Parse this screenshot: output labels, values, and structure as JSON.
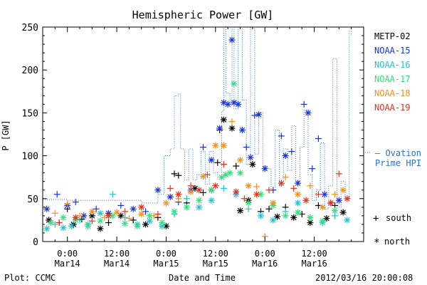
{
  "chart_data": {
    "type": "scatter",
    "title": "Hemispheric Power [GW]",
    "ylabel": "P [GW]",
    "xlabel": "Date and Time",
    "ylim": [
      0,
      250
    ],
    "yticks": [
      "0",
      "50",
      "100",
      "150",
      "200",
      "250"
    ],
    "xlim_hours": [
      -6,
      72
    ],
    "xticks": [
      {
        "time": "0:00",
        "date": "Mar14",
        "hour": 0
      },
      {
        "time": "12:00",
        "date": "Mar14",
        "hour": 12
      },
      {
        "time": "0:00",
        "date": "Mar15",
        "hour": 24
      },
      {
        "time": "12:00",
        "date": "Mar15",
        "hour": 36
      },
      {
        "time": "0:00",
        "date": "Mar16",
        "hour": 48
      },
      {
        "time": "12:00",
        "date": "Mar16",
        "hour": 60
      }
    ],
    "legend": [
      {
        "name": "METP-02",
        "color": "#000000"
      },
      {
        "name": "NOAA-15",
        "color": "#1a33d6"
      },
      {
        "name": "NOAA-16",
        "color": "#22c3cf"
      },
      {
        "name": "NOAA-17",
        "color": "#33e07a"
      },
      {
        "name": "NOAA-18",
        "color": "#f0901e"
      },
      {
        "name": "NOAA-19",
        "color": "#e0321e"
      }
    ],
    "ovation_label_line1": "— Ovation",
    "ovation_label_line2": "Prime HPI",
    "ovation_color": "#2a6fce",
    "marker_legend": [
      {
        "symbol": "+",
        "label": "south"
      },
      {
        "symbol": "*",
        "label": "north"
      }
    ],
    "ovation_hpi": [
      [
        -6,
        49
      ],
      [
        -0.5,
        49
      ],
      [
        0,
        48
      ],
      [
        6,
        48
      ],
      [
        12,
        48
      ],
      [
        18,
        45
      ],
      [
        22,
        55
      ],
      [
        23.5,
        100
      ],
      [
        25,
        108
      ],
      [
        26,
        170
      ],
      [
        27,
        172
      ],
      [
        27.5,
        108
      ],
      [
        28.5,
        72
      ],
      [
        29.5,
        108
      ],
      [
        30.5,
        72
      ],
      [
        31.5,
        78
      ],
      [
        32.5,
        105
      ],
      [
        33.5,
        67
      ],
      [
        34.5,
        105
      ],
      [
        35.5,
        80
      ],
      [
        36.5,
        73
      ],
      [
        37.5,
        152
      ],
      [
        38,
        250
      ],
      [
        38.5,
        173
      ],
      [
        39.5,
        160
      ],
      [
        40,
        250
      ],
      [
        40.5,
        155
      ],
      [
        41.5,
        250
      ],
      [
        42.5,
        165
      ],
      [
        43.5,
        90
      ],
      [
        44.5,
        250
      ],
      [
        45.5,
        102
      ],
      [
        46.5,
        150
      ],
      [
        47.5,
        88
      ],
      [
        48.5,
        85
      ],
      [
        49.5,
        60
      ],
      [
        50.5,
        130
      ],
      [
        51.5,
        65
      ],
      [
        52.5,
        108
      ],
      [
        53.5,
        83
      ],
      [
        54.5,
        135
      ],
      [
        55.5,
        70
      ],
      [
        56.5,
        110
      ],
      [
        57.5,
        153
      ],
      [
        58.5,
        78
      ],
      [
        59.5,
        48
      ],
      [
        60.5,
        60
      ],
      [
        61.5,
        115
      ],
      [
        62.5,
        38
      ],
      [
        63.5,
        65
      ],
      [
        64.5,
        213
      ],
      [
        65.5,
        40
      ],
      [
        66.5,
        70
      ],
      [
        67.5,
        50
      ],
      [
        68.5,
        245
      ],
      [
        69,
        240
      ]
    ],
    "series": [
      {
        "name": "METP-02",
        "points": [
          [
            -4.5,
            25,
            "n"
          ],
          [
            -2,
            22,
            "s"
          ],
          [
            0,
            38,
            "s"
          ],
          [
            1.5,
            20,
            "n"
          ],
          [
            3.5,
            26,
            "s"
          ],
          [
            6,
            30,
            "n"
          ],
          [
            8,
            15,
            "n"
          ],
          [
            10,
            22,
            "s"
          ],
          [
            13,
            30,
            "n"
          ],
          [
            16,
            25,
            "s"
          ],
          [
            19,
            20,
            "n"
          ],
          [
            22,
            28,
            "s"
          ],
          [
            24,
            18,
            "n"
          ],
          [
            26,
            79,
            "s"
          ],
          [
            27,
            77,
            "s"
          ],
          [
            29,
            45,
            "s"
          ],
          [
            31,
            62,
            "n"
          ],
          [
            33,
            57,
            "s"
          ],
          [
            35,
            60,
            "n"
          ],
          [
            36.5,
            92,
            "s"
          ],
          [
            37,
            130,
            "s"
          ],
          [
            38,
            142,
            "n"
          ],
          [
            40,
            132,
            "n"
          ],
          [
            41,
            88,
            "s"
          ],
          [
            42,
            36,
            "n"
          ],
          [
            44,
            48,
            "n"
          ],
          [
            45,
            90,
            "n"
          ],
          [
            47,
            35,
            "s"
          ],
          [
            49,
            38,
            "s"
          ],
          [
            51,
            29,
            "n"
          ],
          [
            53,
            40,
            "s"
          ],
          [
            55,
            28,
            "n"
          ],
          [
            57,
            32,
            "s"
          ],
          [
            59,
            22,
            "n"
          ],
          [
            61,
            42,
            "s"
          ],
          [
            63,
            27,
            "n"
          ],
          [
            65,
            42,
            "s"
          ],
          [
            67,
            34,
            "n"
          ]
        ]
      },
      {
        "name": "NOAA-15",
        "points": [
          [
            -5,
            38,
            "n"
          ],
          [
            -2.5,
            55,
            "s"
          ],
          [
            0,
            42,
            "n"
          ],
          [
            2,
            46,
            "s"
          ],
          [
            4,
            30,
            "n"
          ],
          [
            7,
            38,
            "s"
          ],
          [
            10,
            33,
            "n"
          ],
          [
            13,
            42,
            "s"
          ],
          [
            16,
            38,
            "n"
          ],
          [
            19,
            35,
            "s"
          ],
          [
            22,
            60,
            "n"
          ],
          [
            25,
            52,
            "n"
          ],
          [
            27,
            46,
            "s"
          ],
          [
            30,
            60,
            "n"
          ],
          [
            33,
            110,
            "s"
          ],
          [
            35,
            95,
            "n"
          ],
          [
            37,
            132,
            "n"
          ],
          [
            38,
            162,
            "n"
          ],
          [
            39,
            160,
            "n"
          ],
          [
            40,
            235,
            "n"
          ],
          [
            40.5,
            162,
            "n"
          ],
          [
            41.5,
            160,
            "n"
          ],
          [
            42.5,
            130,
            "n"
          ],
          [
            43.5,
            110,
            "s"
          ],
          [
            44.5,
            98,
            "n"
          ],
          [
            45.5,
            147,
            "s"
          ],
          [
            46.5,
            148,
            "n"
          ],
          [
            48,
            85,
            "n"
          ],
          [
            50,
            60,
            "s"
          ],
          [
            52,
            123,
            "s"
          ],
          [
            53,
            100,
            "n"
          ],
          [
            54.5,
            105,
            "s"
          ],
          [
            56,
            68,
            "n"
          ],
          [
            57.5,
            160,
            "s"
          ],
          [
            58.5,
            150,
            "n"
          ],
          [
            59.5,
            85,
            "s"
          ],
          [
            61,
            120,
            "s"
          ],
          [
            62.5,
            55,
            "n"
          ],
          [
            64,
            45,
            "s"
          ],
          [
            66,
            48,
            "n"
          ]
        ]
      },
      {
        "name": "NOAA-16",
        "points": [
          [
            -5,
            15,
            "n"
          ],
          [
            -3,
            20,
            "s"
          ],
          [
            -1,
            16,
            "n"
          ],
          [
            1,
            18,
            "n"
          ],
          [
            3,
            25,
            "s"
          ],
          [
            5,
            20,
            "n"
          ],
          [
            8,
            33,
            "n"
          ],
          [
            11,
            55,
            "s"
          ],
          [
            14,
            28,
            "s"
          ],
          [
            17,
            20,
            "n"
          ],
          [
            20,
            24,
            "n"
          ],
          [
            23,
            18,
            "n"
          ],
          [
            26,
            32,
            "s"
          ],
          [
            29,
            50,
            "s"
          ],
          [
            32,
            40,
            "n"
          ],
          [
            35,
            48,
            "n"
          ],
          [
            38,
            62,
            "s"
          ],
          [
            41,
            55,
            "n"
          ],
          [
            44,
            38,
            "s"
          ],
          [
            47,
            30,
            "n"
          ],
          [
            50,
            25,
            "n"
          ],
          [
            53,
            35,
            "s"
          ],
          [
            56,
            45,
            "n"
          ],
          [
            59,
            28,
            "s"
          ],
          [
            62,
            22,
            "n"
          ],
          [
            65,
            30,
            "s"
          ],
          [
            68,
            25,
            "n"
          ]
        ]
      },
      {
        "name": "NOAA-17",
        "points": [
          [
            -4,
            22,
            "n"
          ],
          [
            -1,
            28,
            "n"
          ],
          [
            2,
            25,
            "n"
          ],
          [
            5,
            18,
            "n"
          ],
          [
            8,
            24,
            "n"
          ],
          [
            11,
            30,
            "n"
          ],
          [
            14,
            21,
            "n"
          ],
          [
            17,
            18,
            "n"
          ],
          [
            20,
            30,
            "n"
          ],
          [
            23,
            22,
            "n"
          ],
          [
            26,
            35,
            "n"
          ],
          [
            29,
            40,
            "n"
          ],
          [
            32,
            48,
            "n"
          ],
          [
            35,
            60,
            "n"
          ],
          [
            37.5,
            75,
            "n"
          ],
          [
            38.5,
            78,
            "n"
          ],
          [
            39.5,
            80,
            "n"
          ],
          [
            40.5,
            184,
            "n"
          ],
          [
            42,
            80,
            "n"
          ],
          [
            44,
            45,
            "n"
          ],
          [
            47,
            55,
            "n"
          ],
          [
            50,
            42,
            "n"
          ],
          [
            53,
            30,
            "n"
          ],
          [
            56,
            34,
            "n"
          ],
          [
            59,
            28,
            "n"
          ],
          [
            62,
            24,
            "n"
          ],
          [
            65,
            36,
            "n"
          ]
        ]
      },
      {
        "name": "NOAA-18",
        "points": [
          [
            -3,
            33,
            "s"
          ],
          [
            0,
            44,
            "s"
          ],
          [
            3,
            30,
            "s"
          ],
          [
            6,
            35,
            "n"
          ],
          [
            9,
            28,
            "s"
          ],
          [
            12,
            34,
            "n"
          ],
          [
            15,
            27,
            "s"
          ],
          [
            18,
            32,
            "n"
          ],
          [
            21,
            30,
            "s"
          ],
          [
            24,
            45,
            "n"
          ],
          [
            27,
            50,
            "s"
          ],
          [
            30,
            58,
            "n"
          ],
          [
            33,
            76,
            "n"
          ],
          [
            36,
            112,
            "n"
          ],
          [
            38,
            112,
            "n"
          ],
          [
            40,
            140,
            "s"
          ],
          [
            42,
            95,
            "n"
          ],
          [
            44,
            65,
            "n"
          ],
          [
            46,
            64,
            "s"
          ],
          [
            48,
            6,
            "s"
          ],
          [
            50,
            45,
            "n"
          ],
          [
            53,
            75,
            "s"
          ],
          [
            56,
            55,
            "n"
          ],
          [
            59,
            65,
            "s"
          ],
          [
            62,
            40,
            "n"
          ],
          [
            65,
            55,
            "s"
          ],
          [
            67,
            60,
            "n"
          ]
        ]
      },
      {
        "name": "NOAA-19",
        "points": [
          [
            -2,
            22,
            "s"
          ],
          [
            2,
            28,
            "n"
          ],
          [
            6,
            24,
            "s"
          ],
          [
            10,
            30,
            "n"
          ],
          [
            14,
            35,
            "s"
          ],
          [
            18,
            40,
            "n"
          ],
          [
            22,
            32,
            "s"
          ],
          [
            25,
            62,
            "s"
          ],
          [
            27,
            55,
            "n"
          ],
          [
            30,
            65,
            "s"
          ],
          [
            32,
            60,
            "n"
          ],
          [
            34,
            78,
            "s"
          ],
          [
            36,
            65,
            "n"
          ],
          [
            38,
            90,
            "s"
          ],
          [
            41,
            58,
            "n"
          ],
          [
            43,
            50,
            "s"
          ],
          [
            46,
            55,
            "n"
          ],
          [
            49,
            60,
            "s"
          ],
          [
            52,
            68,
            "n"
          ],
          [
            55,
            62,
            "s"
          ],
          [
            58,
            48,
            "n"
          ],
          [
            61,
            55,
            "s"
          ],
          [
            64,
            45,
            "n"
          ],
          [
            66,
            79,
            "s"
          ],
          [
            68,
            50,
            "n"
          ]
        ]
      }
    ]
  },
  "footer": {
    "plot_label": "Plot: CCMC",
    "xlabel": "Date and Time",
    "timestamp": "2012/03/16 20:00:08"
  }
}
